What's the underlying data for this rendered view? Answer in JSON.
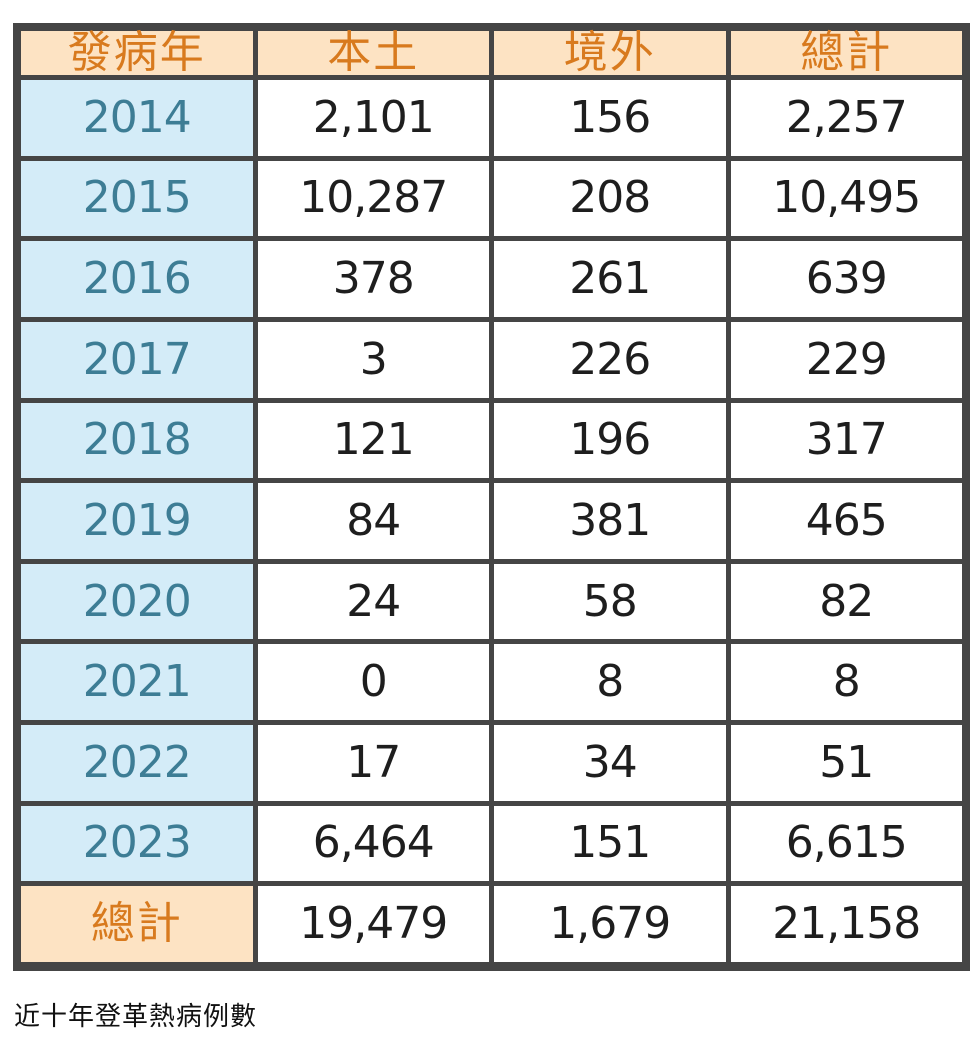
{
  "chart_data": {
    "type": "table",
    "columns": [
      "發病年",
      "本土",
      "境外",
      "總計"
    ],
    "rows": [
      [
        "2014",
        "2,101",
        "156",
        "2,257"
      ],
      [
        "2015",
        "10,287",
        "208",
        "10,495"
      ],
      [
        "2016",
        "378",
        "261",
        "639"
      ],
      [
        "2017",
        "3",
        "226",
        "229"
      ],
      [
        "2018",
        "121",
        "196",
        "317"
      ],
      [
        "2019",
        "84",
        "381",
        "465"
      ],
      [
        "2020",
        "24",
        "58",
        "82"
      ],
      [
        "2021",
        "0",
        "8",
        "8"
      ],
      [
        "2022",
        "17",
        "34",
        "51"
      ],
      [
        "2023",
        "6,464",
        "151",
        "6,615"
      ]
    ],
    "total_row": [
      "總計",
      "19,479",
      "1,679",
      "21,158"
    ]
  },
  "caption": "近十年登革熱病例數",
  "colors": {
    "frame": "#454545",
    "header_bg": "#fde3c3",
    "header_text": "#d87a1e",
    "year_bg": "#d4ecf8",
    "year_text": "#3d7d95",
    "value_text": "#1e1e1e"
  }
}
